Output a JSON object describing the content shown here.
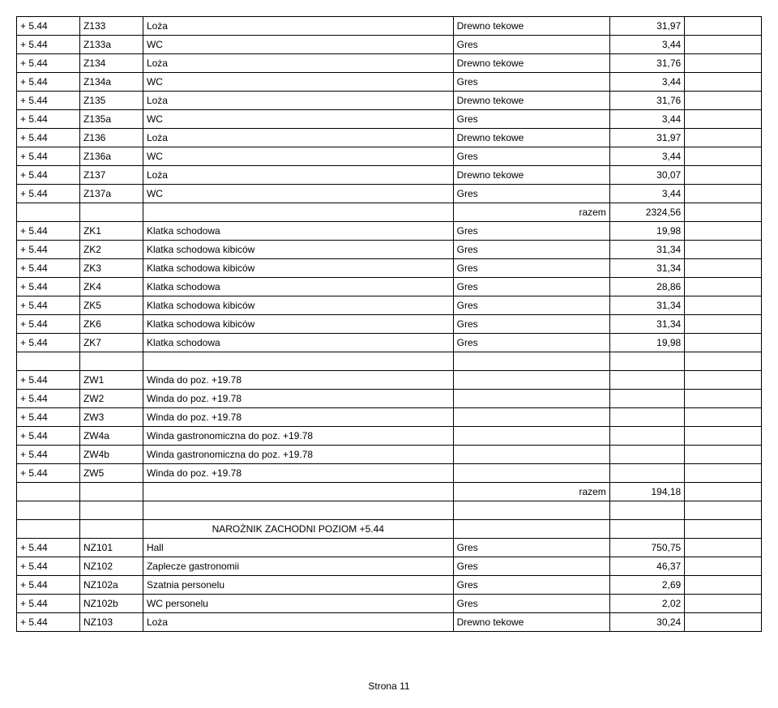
{
  "table": {
    "columns": [
      {
        "class": "col1"
      },
      {
        "class": "col2"
      },
      {
        "class": "col3"
      },
      {
        "class": "col4"
      },
      {
        "class": "col5"
      },
      {
        "class": "col6"
      }
    ],
    "rows": [
      {
        "cells": [
          "+ 5.44",
          "Z133",
          "Loża",
          "Drewno tekowe",
          "31,97",
          ""
        ]
      },
      {
        "cells": [
          "+ 5.44",
          "Z133a",
          "WC",
          "Gres",
          "3,44",
          ""
        ]
      },
      {
        "cells": [
          "+ 5.44",
          "Z134",
          "Loża",
          "Drewno tekowe",
          "31,76",
          ""
        ]
      },
      {
        "cells": [
          "+ 5.44",
          "Z134a",
          "WC",
          "Gres",
          "3,44",
          ""
        ]
      },
      {
        "cells": [
          "+ 5.44",
          "Z135",
          "Loża",
          "Drewno tekowe",
          "31,76",
          ""
        ]
      },
      {
        "cells": [
          "+ 5.44",
          "Z135a",
          "WC",
          "Gres",
          "3,44",
          ""
        ]
      },
      {
        "cells": [
          "+ 5.44",
          "Z136",
          "Loża",
          "Drewno tekowe",
          "31,97",
          ""
        ]
      },
      {
        "cells": [
          "+ 5.44",
          "Z136a",
          "WC",
          "Gres",
          "3,44",
          ""
        ]
      },
      {
        "cells": [
          "+ 5.44",
          "Z137",
          "Loża",
          "Drewno tekowe",
          "30,07",
          ""
        ]
      },
      {
        "cells": [
          "+ 5.44",
          "Z137a",
          "WC",
          "Gres",
          "3,44",
          ""
        ]
      },
      {
        "cells": [
          "",
          "",
          "",
          "razem",
          "2324,56",
          ""
        ],
        "align4": "right"
      },
      {
        "cells": [
          "+ 5.44",
          "ZK1",
          "Klatka schodowa",
          "Gres",
          "19,98",
          ""
        ]
      },
      {
        "cells": [
          "+ 5.44",
          "ZK2",
          "Klatka schodowa kibiców",
          "Gres",
          "31,34",
          ""
        ]
      },
      {
        "cells": [
          "+ 5.44",
          "ZK3",
          "Klatka schodowa kibiców",
          "Gres",
          "31,34",
          ""
        ]
      },
      {
        "cells": [
          "+ 5.44",
          "ZK4",
          "Klatka schodowa",
          "Gres",
          "28,86",
          ""
        ]
      },
      {
        "cells": [
          "+ 5.44",
          "ZK5",
          "Klatka schodowa kibiców",
          "Gres",
          "31,34",
          ""
        ]
      },
      {
        "cells": [
          "+ 5.44",
          "ZK6",
          "Klatka schodowa kibiców",
          "Gres",
          "31,34",
          ""
        ]
      },
      {
        "cells": [
          "+ 5.44",
          "ZK7",
          "Klatka schodowa",
          "Gres",
          "19,98",
          ""
        ]
      },
      {
        "cells": [
          "",
          "",
          "",
          "",
          "",
          ""
        ]
      },
      {
        "cells": [
          "+ 5.44",
          "ZW1",
          "Winda do poz. +19.78",
          "",
          "",
          ""
        ]
      },
      {
        "cells": [
          "+ 5.44",
          "ZW2",
          "Winda do poz. +19.78",
          "",
          "",
          ""
        ]
      },
      {
        "cells": [
          "+ 5.44",
          "ZW3",
          "Winda do poz. +19.78",
          "",
          "",
          ""
        ]
      },
      {
        "cells": [
          "+ 5.44",
          "ZW4a",
          "Winda gastronomiczna do poz. +19.78",
          "",
          "",
          ""
        ]
      },
      {
        "cells": [
          "+ 5.44",
          "ZW4b",
          "Winda gastronomiczna do poz. +19.78",
          "",
          "",
          ""
        ]
      },
      {
        "cells": [
          "+ 5.44",
          "ZW5",
          "Winda do poz. +19.78",
          "",
          "",
          ""
        ]
      },
      {
        "cells": [
          "",
          "",
          "",
          "razem",
          "194,18",
          ""
        ],
        "align4": "right"
      },
      {
        "cells": [
          "",
          "",
          "",
          "",
          "",
          ""
        ]
      },
      {
        "cells": [
          "",
          "",
          "NAROŻNIK ZACHODNI POZIOM +5.44",
          "",
          "",
          ""
        ],
        "align3": "center"
      },
      {
        "cells": [
          "+ 5.44",
          "NZ101",
          "Hall",
          "Gres",
          "750,75",
          ""
        ]
      },
      {
        "cells": [
          "+ 5.44",
          "NZ102",
          "Zaplecze gastronomii",
          "Gres",
          "46,37",
          ""
        ]
      },
      {
        "cells": [
          "+ 5.44",
          "NZ102a",
          "Szatnia personelu",
          "Gres",
          "2,69",
          ""
        ]
      },
      {
        "cells": [
          "+ 5.44",
          "NZ102b",
          "WC personelu",
          "Gres",
          "2,02",
          ""
        ]
      },
      {
        "cells": [
          "+ 5.44",
          "NZ103",
          "Loża",
          "Drewno tekowe",
          "30,24",
          ""
        ]
      }
    ]
  },
  "footer": "Strona 11"
}
